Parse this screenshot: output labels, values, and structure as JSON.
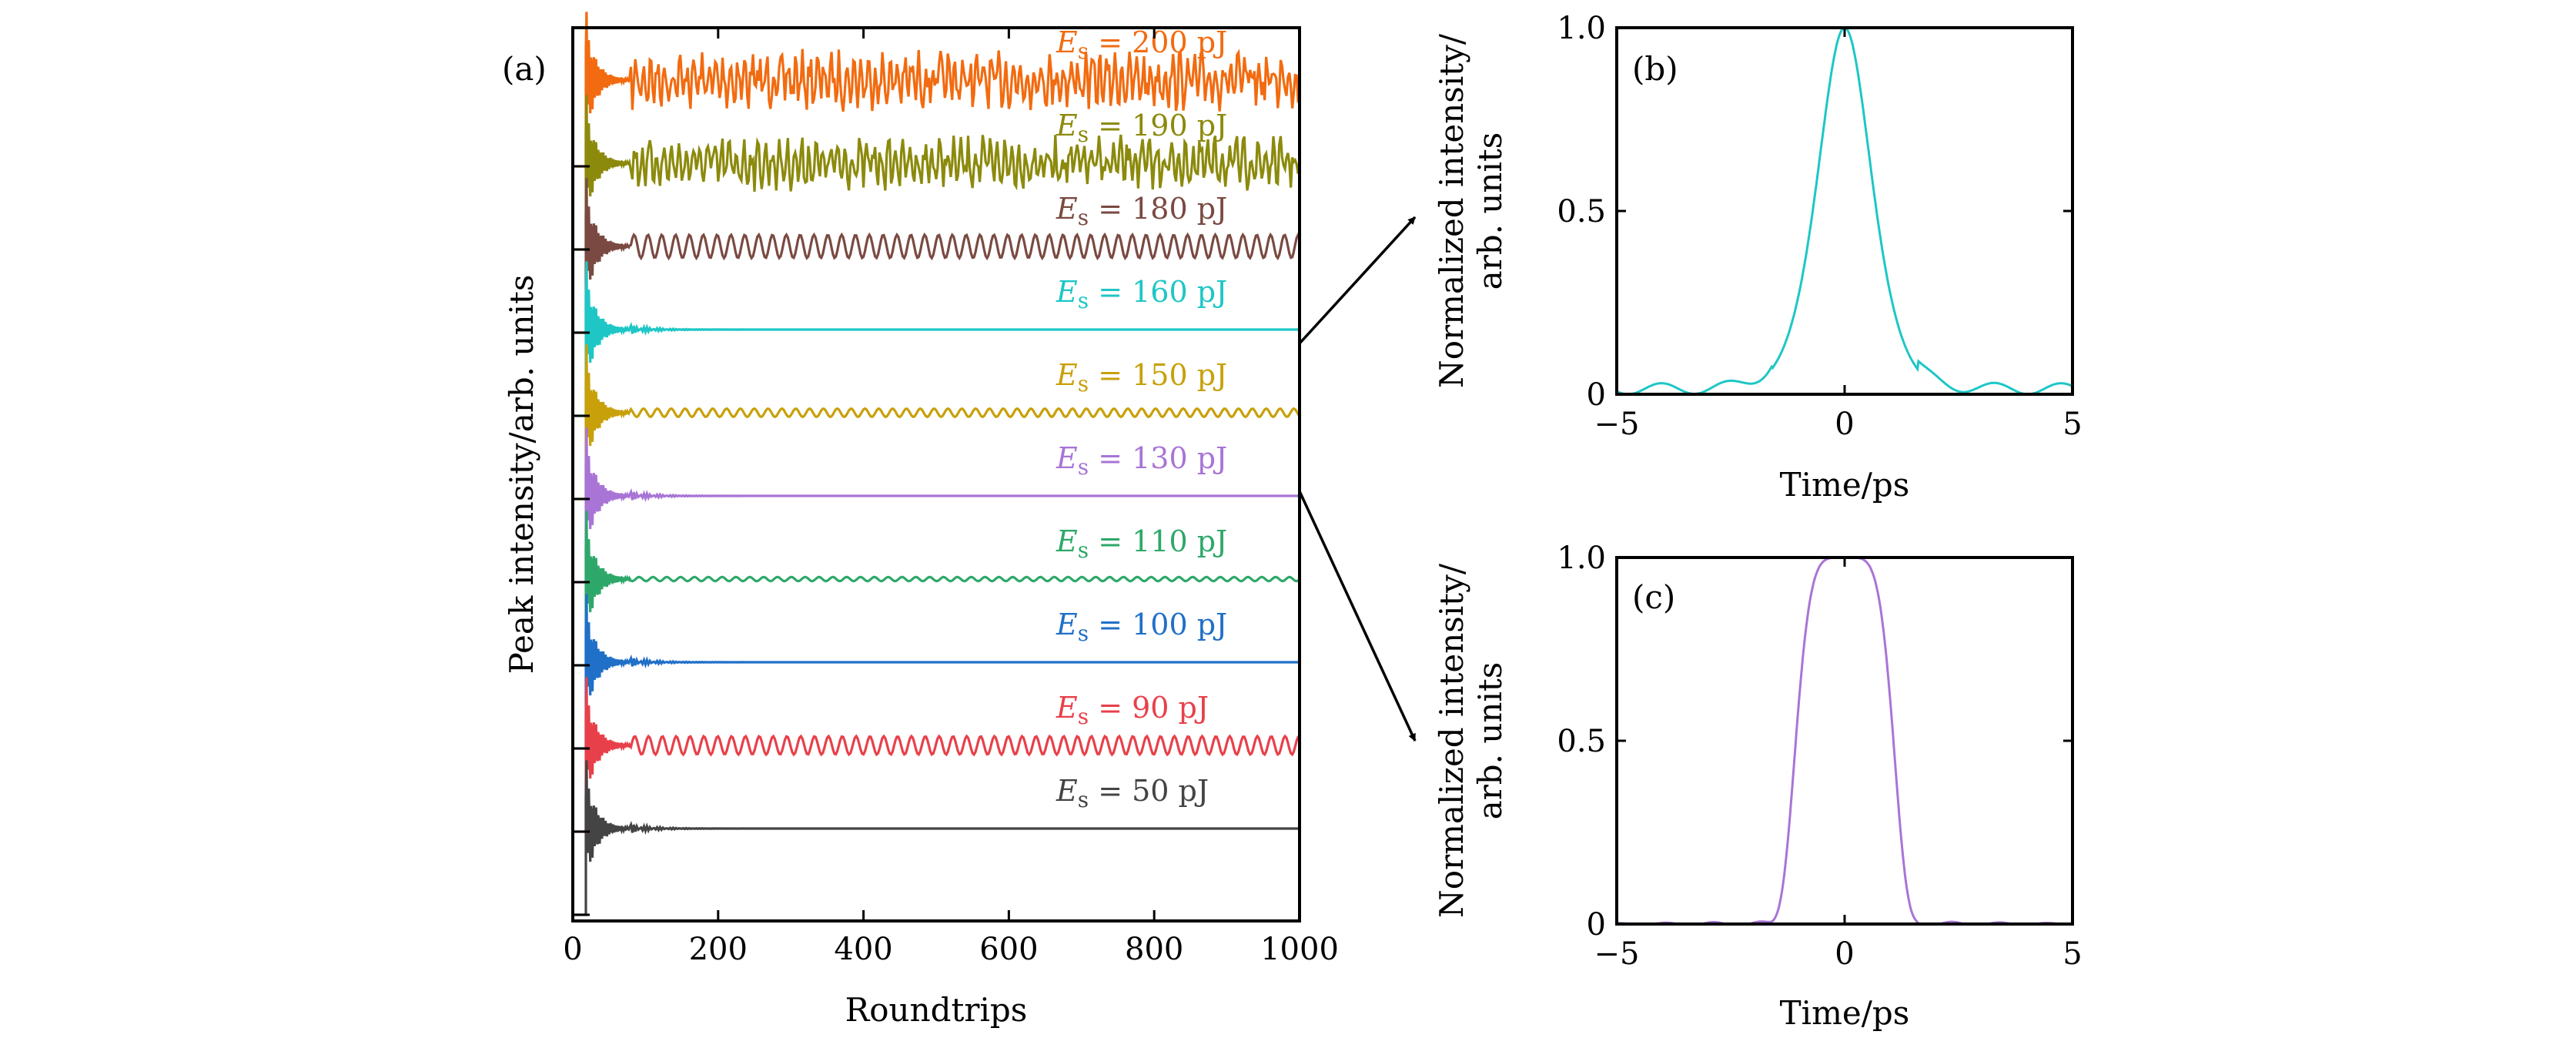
{
  "chart_data": [
    {
      "panel": "(a)",
      "type": "line",
      "xlabel": "Roundtrips",
      "ylabel": "Peak intensity/arb. units",
      "xlim": [
        0,
        1000
      ],
      "xticks": [
        0,
        200,
        400,
        600,
        800,
        1000
      ],
      "yticks_labeled": false,
      "series": [
        {
          "name": "E_s = 200 pJ",
          "label_main": "E",
          "label_sub": "s",
          "label_rest": " = 200 pJ",
          "color": "#f26b10",
          "onset": 18,
          "behavior": "chaotic",
          "amplitude": 0.34
        },
        {
          "name": "E_s = 190 pJ",
          "label_main": "E",
          "label_sub": "s",
          "label_rest": " = 190 pJ",
          "color": "#8c8a0c",
          "onset": 18,
          "behavior": "chaotic",
          "amplitude": 0.3
        },
        {
          "name": "E_s = 180 pJ",
          "label_main": "E",
          "label_sub": "s",
          "label_rest": " = 180 pJ",
          "color": "#7a4a42",
          "onset": 18,
          "behavior": "periodic",
          "amplitude": 0.14
        },
        {
          "name": "E_s = 160 pJ",
          "label_main": "E",
          "label_sub": "s",
          "label_rest": " = 160 pJ",
          "color": "#1ec6c6",
          "onset": 18,
          "behavior": "stable",
          "amplitude": 0
        },
        {
          "name": "E_s = 150 pJ",
          "label_main": "E",
          "label_sub": "s",
          "label_rest": " = 150 pJ",
          "color": "#c8a00a",
          "onset": 18,
          "behavior": "periodic",
          "amplitude": 0.05
        },
        {
          "name": "E_s = 130 pJ",
          "label_main": "E",
          "label_sub": "s",
          "label_rest": " = 130 pJ",
          "color": "#a874d6",
          "onset": 18,
          "behavior": "stable",
          "amplitude": 0
        },
        {
          "name": "E_s = 110 pJ",
          "label_main": "E",
          "label_sub": "s",
          "label_rest": " = 110 pJ",
          "color": "#2ea86a",
          "onset": 18,
          "behavior": "periodic",
          "amplitude": 0.025
        },
        {
          "name": "E_s = 100 pJ",
          "label_main": "E",
          "label_sub": "s",
          "label_rest": " = 100 pJ",
          "color": "#2070c8",
          "onset": 18,
          "behavior": "stable",
          "amplitude": 0
        },
        {
          "name": "E_s = 90 pJ",
          "label_main": "E",
          "label_sub": "s",
          "label_rest": " = 90 pJ",
          "color": "#e8404a",
          "onset": 18,
          "behavior": "periodic",
          "amplitude": 0.11
        },
        {
          "name": "E_s = 50 pJ",
          "label_main": "E",
          "label_sub": "s",
          "label_rest": " = 50 pJ",
          "color": "#444444",
          "onset": 18,
          "behavior": "stable",
          "amplitude": 0
        }
      ]
    },
    {
      "panel": "(b)",
      "type": "line",
      "xlabel": "Time/ps",
      "ylabel": "Normalized intensity/ arb. units",
      "xlim": [
        -5,
        5
      ],
      "ylim": [
        0,
        1
      ],
      "xticks": [
        -5,
        0,
        5
      ],
      "xtick_labels": [
        "−5",
        "0",
        "5"
      ],
      "yticks": [
        0,
        0.5,
        1.0
      ],
      "ytick_labels": [
        "0",
        "0.5",
        "1.0"
      ],
      "color": "#1ec6c6",
      "pulse_shape": "sech-like",
      "fwhm_ps": 1.4,
      "peak": 1.0
    },
    {
      "panel": "(c)",
      "type": "line",
      "xlabel": "Time/ps",
      "ylabel": "Normalized intensity/ arb. units",
      "xlim": [
        -5,
        5
      ],
      "ylim": [
        0,
        1
      ],
      "xticks": [
        -5,
        0,
        5
      ],
      "xtick_labels": [
        "−5",
        "0",
        "5"
      ],
      "yticks": [
        0,
        0.5,
        1.0
      ],
      "ytick_labels": [
        "0",
        "0.5",
        "1.0"
      ],
      "color": "#a874d6",
      "pulse_shape": "flat-top",
      "fwhm_ps": 2.1,
      "peak": 1.0
    }
  ]
}
